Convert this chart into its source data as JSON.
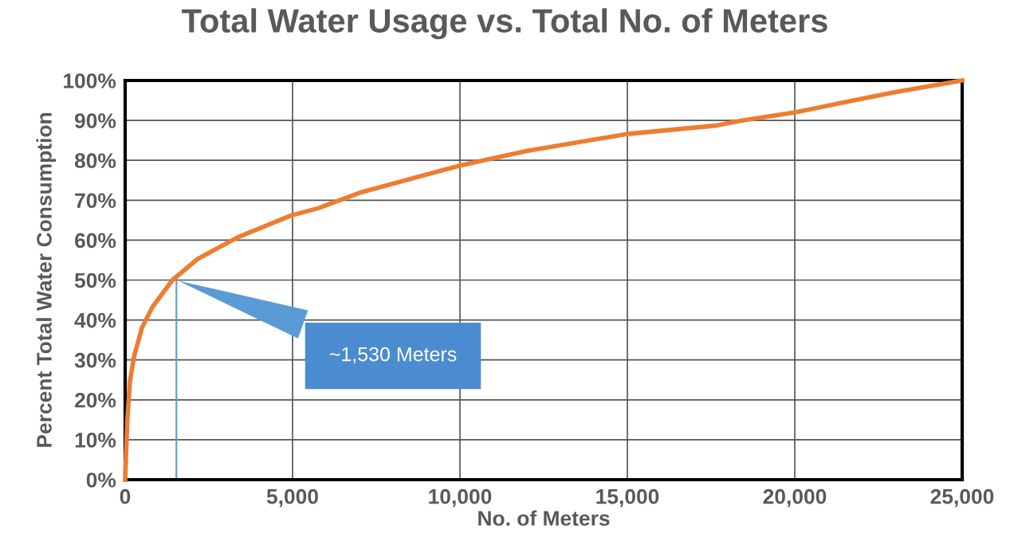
{
  "chart_data": {
    "type": "line",
    "title": "Total Water Usage vs. Total No. of Meters",
    "xlabel": "No. of Meters",
    "ylabel": "Percent Total Water Consumption",
    "x": [
      0,
      64,
      143,
      262,
      500,
      818,
      1413,
      2168,
      3358,
      4960,
      5763,
      7013,
      10000,
      12013,
      15000,
      17638,
      18388,
      20013,
      21638,
      23013,
      25000
    ],
    "series": [
      {
        "color": "#ed7d31",
        "values": [
          0,
          14.7,
          24.7,
          30.7,
          38,
          43.3,
          50,
          55.3,
          60.7,
          66.2,
          68.0,
          71.9,
          78.7,
          82.4,
          86.6,
          88.7,
          89.9,
          92.0,
          94.8,
          97.1,
          100
        ]
      }
    ],
    "xlim": [
      0,
      25000
    ],
    "ylim": [
      0,
      100
    ],
    "xticks": [
      0,
      {
        "value": 5000,
        "label": "5,000"
      },
      {
        "value": 10000,
        "label": "10,000"
      },
      {
        "value": 15000,
        "label": "15,000"
      },
      {
        "value": 20000,
        "label": "20,000"
      },
      {
        "value": 25000,
        "label": "25,000"
      }
    ],
    "yticks": [
      {
        "value": 0,
        "label": "0%"
      },
      {
        "value": 10,
        "label": "10%"
      },
      {
        "value": 20,
        "label": "20%"
      },
      {
        "value": 30,
        "label": "30%"
      },
      {
        "value": 40,
        "label": "40%"
      },
      {
        "value": 50,
        "label": "50%"
      },
      {
        "value": 60,
        "label": "60%"
      },
      {
        "value": 70,
        "label": "70%"
      },
      {
        "value": 80,
        "label": "80%"
      },
      {
        "value": 90,
        "label": "90%"
      },
      {
        "value": 100,
        "label": "100%"
      }
    ],
    "grid": true,
    "marker": "none",
    "line_style": "solid",
    "annotations": [
      {
        "text": "~1,530 Meters",
        "x": 1530,
        "y": 50
      }
    ]
  }
}
